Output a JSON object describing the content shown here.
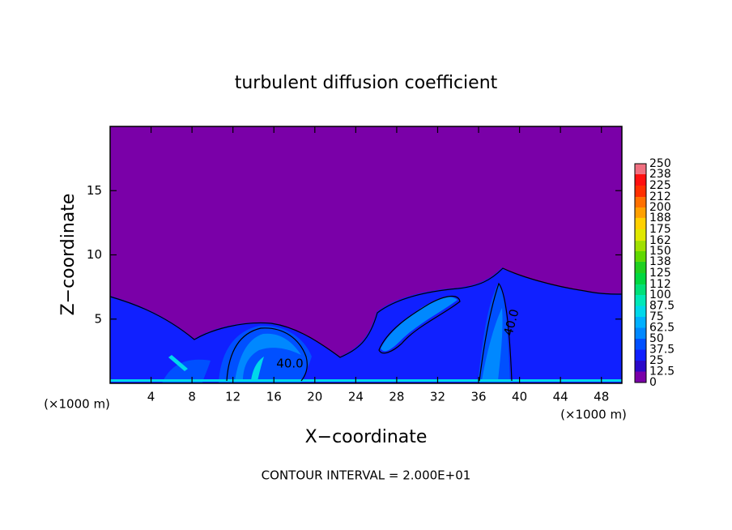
{
  "chart_data": {
    "type": "contour",
    "title": "turbulent diffusion coefficient",
    "x_label": "X−coordinate",
    "y_label": "Z−coordinate",
    "x_unit_labels": [
      "(×1000 m)",
      "(×1000 m)"
    ],
    "xlim": [
      0,
      50
    ],
    "xticks": [
      4,
      8,
      12,
      16,
      20,
      24,
      28,
      32,
      36,
      40,
      44,
      48
    ],
    "ylim": [
      0,
      20
    ],
    "yticks": [
      5,
      10,
      15
    ],
    "colorbar": {
      "levels": [
        0,
        12.5,
        25,
        37.5,
        50,
        62.5,
        75,
        87.5,
        100,
        112,
        125,
        138,
        150,
        162,
        175,
        188,
        200,
        212,
        225,
        238,
        250
      ],
      "colors": [
        "#7a00a8",
        "#2a08c8",
        "#1020ff",
        "#0050ff",
        "#0088ff",
        "#00b0ff",
        "#00d8ea",
        "#00e8b8",
        "#00e078",
        "#00d840",
        "#20d020",
        "#60d800",
        "#a0e000",
        "#e0e800",
        "#ffd000",
        "#ffa000",
        "#ff7000",
        "#ff3000",
        "#ff1010",
        "#f07080"
      ]
    },
    "annotations": [
      "40.0",
      "40.0"
    ],
    "footer": "CONTOUR INTERVAL = 2.000E+01"
  }
}
